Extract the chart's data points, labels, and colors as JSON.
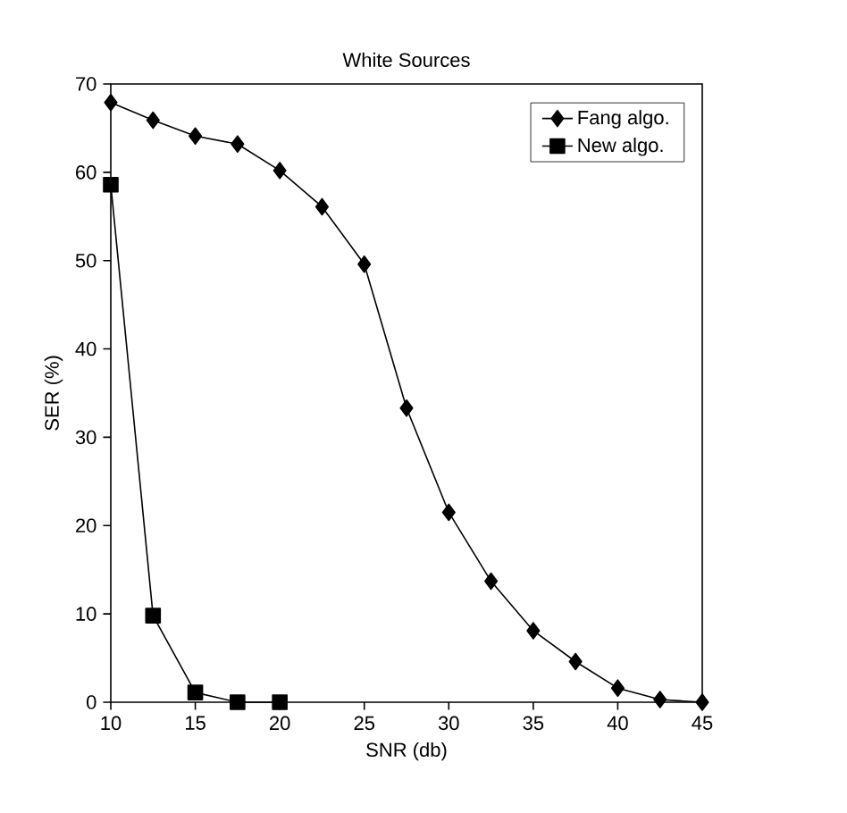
{
  "chart_data": {
    "type": "line",
    "title": "White Sources",
    "xlabel": "SNR (db)",
    "ylabel": "SER (%)",
    "xlim": [
      10,
      45
    ],
    "xticks": [
      10,
      15,
      20,
      25,
      30,
      35,
      40,
      45
    ],
    "ylim": [
      0,
      70
    ],
    "yticks": [
      0,
      10,
      20,
      30,
      40,
      50,
      60,
      70
    ],
    "legend": "top right",
    "grid": false,
    "line_style": "solid",
    "series": [
      {
        "name": "Fang algo.",
        "color": "#000000",
        "marker": "diamond",
        "x": [
          10,
          12.5,
          15,
          17.5,
          20,
          22.5,
          25,
          27.5,
          30,
          32.5,
          35,
          37.5,
          40,
          42.5,
          45
        ],
        "values": [
          67.9,
          65.9,
          64.1,
          63.2,
          60.2,
          56.1,
          49.6,
          33.3,
          21.5,
          13.7,
          8.1,
          4.6,
          1.6,
          0.3,
          0
        ]
      },
      {
        "name": "New algo.",
        "color": "#000000",
        "marker": "square",
        "x": [
          10,
          12.5,
          15,
          17.5,
          20
        ],
        "values": [
          58.6,
          9.8,
          1.1,
          0,
          0
        ]
      }
    ]
  }
}
